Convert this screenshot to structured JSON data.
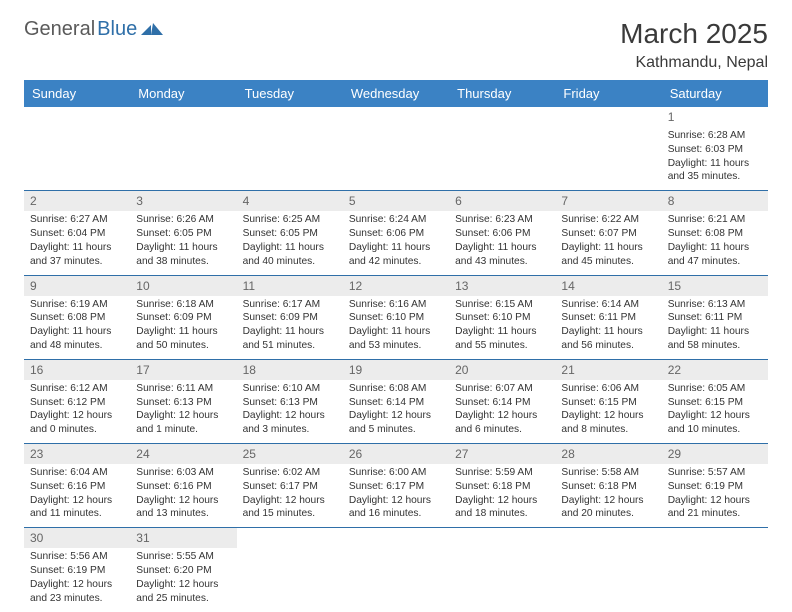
{
  "brand": {
    "part1": "General",
    "part2": "Blue"
  },
  "title": "March 2025",
  "location": "Kathmandu, Nepal",
  "colors": {
    "header_bg": "#3b82c4",
    "header_fg": "#ffffff",
    "row_border": "#2f6fa8",
    "day_bg": "#ececec",
    "logo_blue": "#2f6fa8",
    "logo_gray": "#5a5a5a"
  },
  "weekdays": [
    "Sunday",
    "Monday",
    "Tuesday",
    "Wednesday",
    "Thursday",
    "Friday",
    "Saturday"
  ],
  "weeks": [
    [
      null,
      null,
      null,
      null,
      null,
      null,
      {
        "n": "1",
        "sr": "Sunrise: 6:28 AM",
        "ss": "Sunset: 6:03 PM",
        "dl1": "Daylight: 11 hours",
        "dl2": "and 35 minutes."
      }
    ],
    [
      {
        "n": "2",
        "sr": "Sunrise: 6:27 AM",
        "ss": "Sunset: 6:04 PM",
        "dl1": "Daylight: 11 hours",
        "dl2": "and 37 minutes."
      },
      {
        "n": "3",
        "sr": "Sunrise: 6:26 AM",
        "ss": "Sunset: 6:05 PM",
        "dl1": "Daylight: 11 hours",
        "dl2": "and 38 minutes."
      },
      {
        "n": "4",
        "sr": "Sunrise: 6:25 AM",
        "ss": "Sunset: 6:05 PM",
        "dl1": "Daylight: 11 hours",
        "dl2": "and 40 minutes."
      },
      {
        "n": "5",
        "sr": "Sunrise: 6:24 AM",
        "ss": "Sunset: 6:06 PM",
        "dl1": "Daylight: 11 hours",
        "dl2": "and 42 minutes."
      },
      {
        "n": "6",
        "sr": "Sunrise: 6:23 AM",
        "ss": "Sunset: 6:06 PM",
        "dl1": "Daylight: 11 hours",
        "dl2": "and 43 minutes."
      },
      {
        "n": "7",
        "sr": "Sunrise: 6:22 AM",
        "ss": "Sunset: 6:07 PM",
        "dl1": "Daylight: 11 hours",
        "dl2": "and 45 minutes."
      },
      {
        "n": "8",
        "sr": "Sunrise: 6:21 AM",
        "ss": "Sunset: 6:08 PM",
        "dl1": "Daylight: 11 hours",
        "dl2": "and 47 minutes."
      }
    ],
    [
      {
        "n": "9",
        "sr": "Sunrise: 6:19 AM",
        "ss": "Sunset: 6:08 PM",
        "dl1": "Daylight: 11 hours",
        "dl2": "and 48 minutes."
      },
      {
        "n": "10",
        "sr": "Sunrise: 6:18 AM",
        "ss": "Sunset: 6:09 PM",
        "dl1": "Daylight: 11 hours",
        "dl2": "and 50 minutes."
      },
      {
        "n": "11",
        "sr": "Sunrise: 6:17 AM",
        "ss": "Sunset: 6:09 PM",
        "dl1": "Daylight: 11 hours",
        "dl2": "and 51 minutes."
      },
      {
        "n": "12",
        "sr": "Sunrise: 6:16 AM",
        "ss": "Sunset: 6:10 PM",
        "dl1": "Daylight: 11 hours",
        "dl2": "and 53 minutes."
      },
      {
        "n": "13",
        "sr": "Sunrise: 6:15 AM",
        "ss": "Sunset: 6:10 PM",
        "dl1": "Daylight: 11 hours",
        "dl2": "and 55 minutes."
      },
      {
        "n": "14",
        "sr": "Sunrise: 6:14 AM",
        "ss": "Sunset: 6:11 PM",
        "dl1": "Daylight: 11 hours",
        "dl2": "and 56 minutes."
      },
      {
        "n": "15",
        "sr": "Sunrise: 6:13 AM",
        "ss": "Sunset: 6:11 PM",
        "dl1": "Daylight: 11 hours",
        "dl2": "and 58 minutes."
      }
    ],
    [
      {
        "n": "16",
        "sr": "Sunrise: 6:12 AM",
        "ss": "Sunset: 6:12 PM",
        "dl1": "Daylight: 12 hours",
        "dl2": "and 0 minutes."
      },
      {
        "n": "17",
        "sr": "Sunrise: 6:11 AM",
        "ss": "Sunset: 6:13 PM",
        "dl1": "Daylight: 12 hours",
        "dl2": "and 1 minute."
      },
      {
        "n": "18",
        "sr": "Sunrise: 6:10 AM",
        "ss": "Sunset: 6:13 PM",
        "dl1": "Daylight: 12 hours",
        "dl2": "and 3 minutes."
      },
      {
        "n": "19",
        "sr": "Sunrise: 6:08 AM",
        "ss": "Sunset: 6:14 PM",
        "dl1": "Daylight: 12 hours",
        "dl2": "and 5 minutes."
      },
      {
        "n": "20",
        "sr": "Sunrise: 6:07 AM",
        "ss": "Sunset: 6:14 PM",
        "dl1": "Daylight: 12 hours",
        "dl2": "and 6 minutes."
      },
      {
        "n": "21",
        "sr": "Sunrise: 6:06 AM",
        "ss": "Sunset: 6:15 PM",
        "dl1": "Daylight: 12 hours",
        "dl2": "and 8 minutes."
      },
      {
        "n": "22",
        "sr": "Sunrise: 6:05 AM",
        "ss": "Sunset: 6:15 PM",
        "dl1": "Daylight: 12 hours",
        "dl2": "and 10 minutes."
      }
    ],
    [
      {
        "n": "23",
        "sr": "Sunrise: 6:04 AM",
        "ss": "Sunset: 6:16 PM",
        "dl1": "Daylight: 12 hours",
        "dl2": "and 11 minutes."
      },
      {
        "n": "24",
        "sr": "Sunrise: 6:03 AM",
        "ss": "Sunset: 6:16 PM",
        "dl1": "Daylight: 12 hours",
        "dl2": "and 13 minutes."
      },
      {
        "n": "25",
        "sr": "Sunrise: 6:02 AM",
        "ss": "Sunset: 6:17 PM",
        "dl1": "Daylight: 12 hours",
        "dl2": "and 15 minutes."
      },
      {
        "n": "26",
        "sr": "Sunrise: 6:00 AM",
        "ss": "Sunset: 6:17 PM",
        "dl1": "Daylight: 12 hours",
        "dl2": "and 16 minutes."
      },
      {
        "n": "27",
        "sr": "Sunrise: 5:59 AM",
        "ss": "Sunset: 6:18 PM",
        "dl1": "Daylight: 12 hours",
        "dl2": "and 18 minutes."
      },
      {
        "n": "28",
        "sr": "Sunrise: 5:58 AM",
        "ss": "Sunset: 6:18 PM",
        "dl1": "Daylight: 12 hours",
        "dl2": "and 20 minutes."
      },
      {
        "n": "29",
        "sr": "Sunrise: 5:57 AM",
        "ss": "Sunset: 6:19 PM",
        "dl1": "Daylight: 12 hours",
        "dl2": "and 21 minutes."
      }
    ],
    [
      {
        "n": "30",
        "sr": "Sunrise: 5:56 AM",
        "ss": "Sunset: 6:19 PM",
        "dl1": "Daylight: 12 hours",
        "dl2": "and 23 minutes."
      },
      {
        "n": "31",
        "sr": "Sunrise: 5:55 AM",
        "ss": "Sunset: 6:20 PM",
        "dl1": "Daylight: 12 hours",
        "dl2": "and 25 minutes."
      },
      null,
      null,
      null,
      null,
      null
    ]
  ]
}
